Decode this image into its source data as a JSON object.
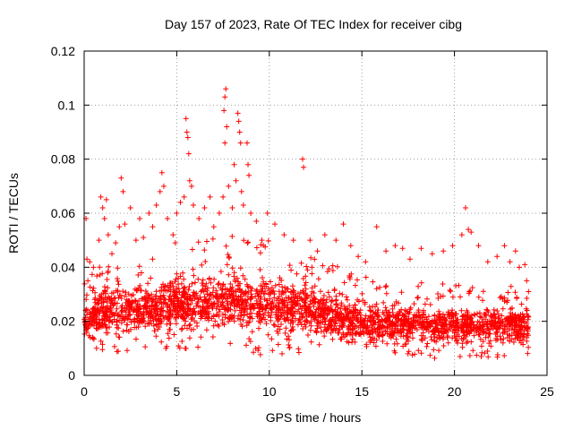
{
  "chart_data": {
    "type": "scatter",
    "title": "Day 157 of 2023, Rate Of TEC Index for receiver cibg",
    "xlabel": "GPS time / hours",
    "ylabel": "ROTI / TECUs",
    "xlim": [
      0,
      25
    ],
    "ylim": [
      0,
      0.12
    ],
    "xticks": [
      "0",
      "5",
      "10",
      "15",
      "20",
      "25"
    ],
    "yticks": [
      "0",
      "0.02",
      "0.04",
      "0.06",
      "0.08",
      "0.1",
      "0.12"
    ],
    "grid": true,
    "marker": "+",
    "color": "#ff0000",
    "points": [
      [
        0.1,
        0.058
      ],
      [
        0.15,
        0.043
      ],
      [
        0.2,
        0.035
      ],
      [
        0.3,
        0.042
      ],
      [
        0.5,
        0.04
      ],
      [
        0.8,
        0.05
      ],
      [
        0.9,
        0.066
      ],
      [
        1.0,
        0.062
      ],
      [
        1.1,
        0.058
      ],
      [
        1.2,
        0.065
      ],
      [
        1.3,
        0.052
      ],
      [
        1.5,
        0.045
      ],
      [
        1.7,
        0.049
      ],
      [
        1.9,
        0.055
      ],
      [
        2.0,
        0.073
      ],
      [
        2.1,
        0.068
      ],
      [
        2.2,
        0.056
      ],
      [
        2.5,
        0.062
      ],
      [
        2.8,
        0.05
      ],
      [
        3.0,
        0.058
      ],
      [
        3.2,
        0.051
      ],
      [
        3.5,
        0.06
      ],
      [
        3.7,
        0.055
      ],
      [
        3.9,
        0.063
      ],
      [
        4.1,
        0.068
      ],
      [
        4.2,
        0.075
      ],
      [
        4.3,
        0.07
      ],
      [
        4.5,
        0.058
      ],
      [
        4.8,
        0.052
      ],
      [
        5.0,
        0.06
      ],
      [
        5.2,
        0.064
      ],
      [
        5.4,
        0.066
      ],
      [
        5.5,
        0.095
      ],
      [
        5.55,
        0.09
      ],
      [
        5.6,
        0.088
      ],
      [
        5.65,
        0.082
      ],
      [
        5.7,
        0.072
      ],
      [
        5.8,
        0.07
      ],
      [
        5.9,
        0.063
      ],
      [
        6.2,
        0.058
      ],
      [
        6.5,
        0.062
      ],
      [
        6.8,
        0.066
      ],
      [
        7.0,
        0.055
      ],
      [
        7.3,
        0.06
      ],
      [
        7.5,
        0.066
      ],
      [
        7.55,
        0.098
      ],
      [
        7.6,
        0.103
      ],
      [
        7.65,
        0.106
      ],
      [
        7.7,
        0.092
      ],
      [
        7.6,
        0.086
      ],
      [
        7.8,
        0.07
      ],
      [
        8.0,
        0.062
      ],
      [
        8.1,
        0.078
      ],
      [
        8.2,
        0.072
      ],
      [
        8.3,
        0.097
      ],
      [
        8.35,
        0.094
      ],
      [
        8.4,
        0.09
      ],
      [
        8.45,
        0.086
      ],
      [
        8.5,
        0.068
      ],
      [
        8.6,
        0.063
      ],
      [
        8.8,
        0.086
      ],
      [
        8.85,
        0.078
      ],
      [
        8.9,
        0.074
      ],
      [
        9.0,
        0.06
      ],
      [
        9.3,
        0.057
      ],
      [
        9.6,
        0.05
      ],
      [
        9.9,
        0.06
      ],
      [
        10.3,
        0.056
      ],
      [
        10.8,
        0.052
      ],
      [
        11.3,
        0.05
      ],
      [
        11.8,
        0.08
      ],
      [
        11.85,
        0.077
      ],
      [
        12.2,
        0.05
      ],
      [
        12.6,
        0.046
      ],
      [
        13.0,
        0.052
      ],
      [
        13.6,
        0.05
      ],
      [
        14.0,
        0.056
      ],
      [
        14.4,
        0.048
      ],
      [
        14.8,
        0.044
      ],
      [
        15.2,
        0.042
      ],
      [
        15.8,
        0.055
      ],
      [
        16.3,
        0.046
      ],
      [
        16.8,
        0.048
      ],
      [
        17.2,
        0.047
      ],
      [
        17.6,
        0.043
      ],
      [
        18.2,
        0.047
      ],
      [
        18.8,
        0.045
      ],
      [
        19.4,
        0.046
      ],
      [
        19.9,
        0.048
      ],
      [
        20.4,
        0.052
      ],
      [
        20.6,
        0.062
      ],
      [
        20.75,
        0.054
      ],
      [
        20.9,
        0.053
      ],
      [
        21.3,
        0.048
      ],
      [
        21.8,
        0.042
      ],
      [
        22.3,
        0.044
      ],
      [
        22.7,
        0.048
      ],
      [
        23.0,
        0.042
      ],
      [
        23.3,
        0.046
      ],
      [
        23.5,
        0.04
      ],
      [
        23.8,
        0.041
      ],
      [
        23.9,
        0.035
      ],
      [
        24.0,
        0.031
      ]
    ],
    "band": {
      "description_free": true,
      "envelope": [
        [
          0,
          0.009,
          0.031
        ],
        [
          1,
          0.009,
          0.038
        ],
        [
          2,
          0.008,
          0.04
        ],
        [
          3,
          0.009,
          0.04
        ],
        [
          4,
          0.009,
          0.042
        ],
        [
          5,
          0.009,
          0.044
        ],
        [
          6,
          0.009,
          0.045
        ],
        [
          7,
          0.009,
          0.046
        ],
        [
          8,
          0.008,
          0.047
        ],
        [
          9,
          0.007,
          0.046
        ],
        [
          10,
          0.008,
          0.045
        ],
        [
          11,
          0.008,
          0.043
        ],
        [
          12,
          0.008,
          0.041
        ],
        [
          13,
          0.007,
          0.038
        ],
        [
          14,
          0.005,
          0.036
        ],
        [
          15,
          0.006,
          0.034
        ],
        [
          16,
          0.007,
          0.032
        ],
        [
          17,
          0.007,
          0.032
        ],
        [
          18,
          0.007,
          0.031
        ],
        [
          19,
          0.006,
          0.031
        ],
        [
          20,
          0.006,
          0.031
        ],
        [
          21,
          0.006,
          0.03
        ],
        [
          22,
          0.006,
          0.03
        ],
        [
          23,
          0.007,
          0.03
        ],
        [
          24,
          0.008,
          0.03
        ]
      ],
      "density_per_hour": 320
    }
  }
}
